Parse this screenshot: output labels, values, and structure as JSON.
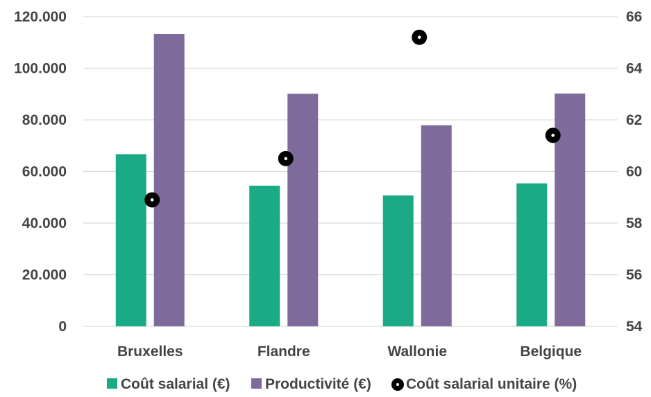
{
  "chart_data": {
    "type": "bar",
    "title": "",
    "categories": [
      "Bruxelles",
      "Flandre",
      "Wallonie",
      "Belgique"
    ],
    "series": [
      {
        "name": "Coût salarial (€)",
        "kind": "bar",
        "axis": "left",
        "color": "#1aaa86",
        "values": [
          66700,
          54500,
          50700,
          55400
        ]
      },
      {
        "name": "Productivité (€)",
        "kind": "bar",
        "axis": "left",
        "color": "#7f6b9b",
        "values": [
          113300,
          90100,
          77900,
          90200
        ]
      },
      {
        "name": "Coût salarial unitaire (%)",
        "kind": "scatter",
        "axis": "right",
        "color": "#000000",
        "values": [
          58.9,
          60.5,
          65.2,
          61.4
        ]
      }
    ],
    "y_left": {
      "min": 0,
      "max": 120000,
      "ticks": [
        0,
        20000,
        40000,
        60000,
        80000,
        100000,
        120000
      ],
      "tick_labels": [
        "0",
        "20.000",
        "40.000",
        "60.000",
        "80.000",
        "100.000",
        "120.000"
      ]
    },
    "y_right": {
      "min": 54,
      "max": 66,
      "ticks": [
        54,
        56,
        58,
        60,
        62,
        64,
        66
      ],
      "tick_labels": [
        "54",
        "56",
        "58",
        "60",
        "62",
        "64",
        "66"
      ]
    },
    "grid": true,
    "legend_position": "bottom"
  }
}
